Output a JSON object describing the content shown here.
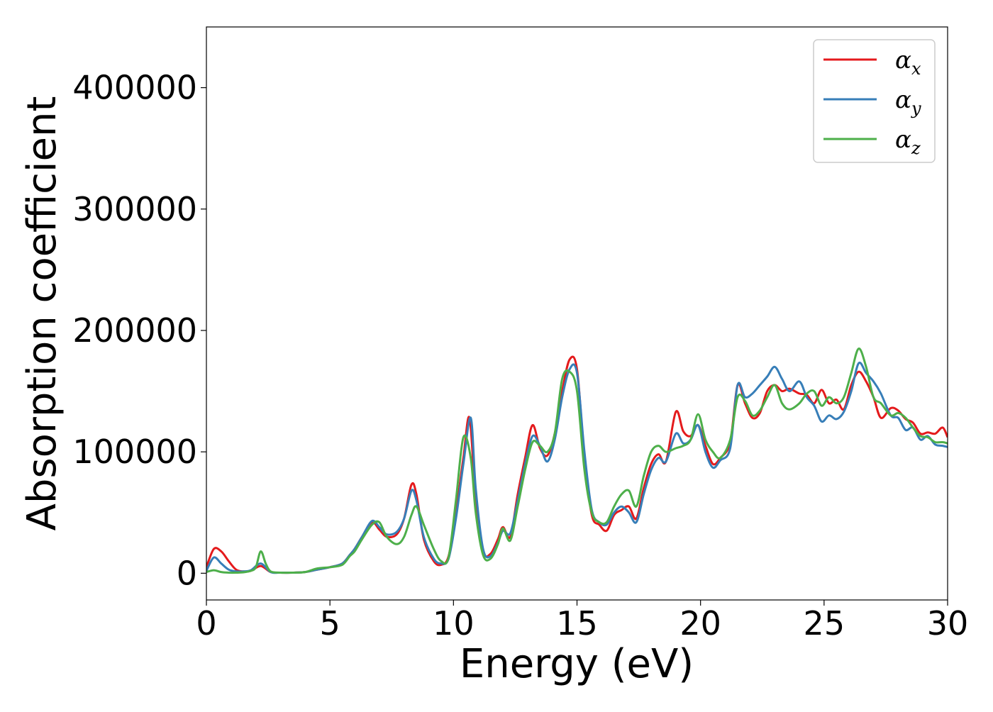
{
  "chart_data": {
    "type": "line",
    "title": "",
    "xlabel": "Energy (eV)",
    "ylabel": "Absorption coefficient",
    "xlim": [
      0,
      30
    ],
    "ylim": [
      -22000,
      450000
    ],
    "xticks": [
      0,
      5,
      10,
      15,
      20,
      25,
      30
    ],
    "xtick_labels": [
      "0",
      "5",
      "10",
      "15",
      "20",
      "25",
      "30"
    ],
    "yticks": [
      0,
      100000,
      200000,
      300000,
      400000
    ],
    "ytick_labels": [
      "0",
      "100000",
      "200000",
      "300000",
      "400000"
    ],
    "grid": false,
    "legend": {
      "position": "top-right"
    },
    "series": [
      {
        "name": "α",
        "subscript": "x",
        "color": "#e41a1c",
        "x": [
          0,
          0.3,
          0.6,
          0.9,
          1.2,
          1.5,
          1.8,
          2.2,
          2.6,
          3.0,
          3.5,
          4.0,
          4.5,
          5.0,
          5.5,
          5.8,
          6.0,
          6.3,
          6.7,
          7.0,
          7.3,
          7.7,
          8.0,
          8.3,
          8.5,
          8.8,
          9.2,
          9.5,
          9.8,
          10.1,
          10.4,
          10.65,
          10.9,
          11.2,
          11.5,
          11.8,
          12.0,
          12.3,
          12.6,
          12.9,
          13.2,
          13.5,
          13.8,
          14.1,
          14.4,
          14.7,
          15.0,
          15.3,
          15.6,
          15.9,
          16.2,
          16.5,
          16.8,
          17.1,
          17.4,
          17.7,
          18.0,
          18.3,
          18.6,
          19.0,
          19.3,
          19.6,
          19.9,
          20.2,
          20.5,
          20.8,
          21.2,
          21.5,
          21.8,
          22.1,
          22.4,
          22.7,
          23.0,
          23.3,
          23.6,
          24.0,
          24.3,
          24.6,
          24.9,
          25.2,
          25.5,
          25.8,
          26.1,
          26.4,
          26.7,
          27.0,
          27.3,
          27.7,
          28.0,
          28.3,
          28.6,
          28.9,
          29.2,
          29.5,
          29.8,
          30.0
        ],
        "y": [
          5000,
          20000,
          18000,
          10000,
          3000,
          1500,
          2000,
          6000,
          1000,
          500,
          500,
          1000,
          3000,
          5000,
          8000,
          15000,
          20000,
          30000,
          42000,
          36000,
          30000,
          32000,
          45000,
          73000,
          65000,
          28000,
          10000,
          7000,
          14000,
          50000,
          95000,
          128000,
          60000,
          18000,
          16000,
          28000,
          38000,
          30000,
          65000,
          95000,
          122000,
          103000,
          97000,
          115000,
          150000,
          176000,
          168000,
          95000,
          48000,
          40000,
          35000,
          48000,
          52000,
          55000,
          45000,
          70000,
          90000,
          98000,
          92000,
          133000,
          117000,
          113000,
          122000,
          105000,
          90000,
          95000,
          108000,
          155000,
          140000,
          128000,
          132000,
          150000,
          155000,
          150000,
          152000,
          148000,
          147000,
          140000,
          151000,
          140000,
          143000,
          135000,
          155000,
          166000,
          158000,
          145000,
          128000,
          136000,
          134000,
          127000,
          124000,
          115000,
          116000,
          115000,
          120000,
          112000
        ]
      },
      {
        "name": "α",
        "subscript": "y",
        "color": "#377eb8",
        "x": [
          0,
          0.3,
          0.6,
          0.9,
          1.2,
          1.5,
          1.8,
          2.2,
          2.6,
          3.0,
          3.5,
          4.0,
          4.5,
          5.0,
          5.5,
          5.8,
          6.0,
          6.3,
          6.7,
          7.0,
          7.3,
          7.7,
          8.0,
          8.3,
          8.5,
          8.8,
          9.2,
          9.5,
          9.8,
          10.1,
          10.4,
          10.7,
          10.9,
          11.2,
          11.5,
          11.8,
          12.0,
          12.3,
          12.6,
          12.9,
          13.2,
          13.5,
          13.8,
          14.1,
          14.4,
          14.7,
          15.0,
          15.3,
          15.6,
          15.9,
          16.2,
          16.5,
          16.8,
          17.1,
          17.4,
          17.7,
          18.0,
          18.3,
          18.6,
          19.0,
          19.3,
          19.6,
          19.9,
          20.2,
          20.5,
          20.8,
          21.2,
          21.5,
          21.8,
          22.1,
          22.4,
          22.7,
          23.0,
          23.3,
          23.6,
          24.0,
          24.3,
          24.6,
          24.9,
          25.2,
          25.5,
          25.8,
          26.1,
          26.4,
          26.7,
          27.0,
          27.3,
          27.7,
          28.0,
          28.3,
          28.6,
          28.9,
          29.2,
          29.5,
          29.8,
          30.0
        ],
        "y": [
          2000,
          13000,
          8000,
          3000,
          1500,
          1500,
          2500,
          8000,
          1000,
          500,
          500,
          1000,
          3000,
          5000,
          8000,
          15000,
          20000,
          30000,
          43000,
          38000,
          32000,
          34000,
          45000,
          68000,
          60000,
          30000,
          12000,
          8000,
          12000,
          45000,
          90000,
          128000,
          70000,
          20000,
          14000,
          25000,
          35000,
          33000,
          60000,
          90000,
          113000,
          105000,
          92000,
          110000,
          145000,
          168000,
          165000,
          100000,
          52000,
          42000,
          40000,
          50000,
          55000,
          50000,
          42000,
          65000,
          85000,
          95000,
          92000,
          115000,
          107000,
          110000,
          122000,
          100000,
          87000,
          93000,
          103000,
          155000,
          145000,
          148000,
          155000,
          162000,
          170000,
          160000,
          150000,
          158000,
          145000,
          138000,
          125000,
          130000,
          127000,
          133000,
          150000,
          173000,
          165000,
          158000,
          148000,
          130000,
          128000,
          118000,
          120000,
          110000,
          113000,
          106000,
          105000,
          104000
        ]
      },
      {
        "name": "α",
        "subscript": "z",
        "color": "#4daf4a",
        "x": [
          0,
          0.3,
          0.6,
          0.9,
          1.2,
          1.5,
          1.8,
          2.0,
          2.2,
          2.4,
          2.6,
          3.0,
          3.5,
          4.0,
          4.5,
          5.0,
          5.5,
          5.8,
          6.0,
          6.3,
          6.7,
          7.0,
          7.3,
          7.7,
          8.0,
          8.3,
          8.5,
          8.8,
          9.2,
          9.5,
          9.8,
          10.1,
          10.4,
          10.7,
          10.9,
          11.2,
          11.5,
          11.8,
          12.0,
          12.3,
          12.6,
          12.9,
          13.2,
          13.5,
          13.8,
          14.1,
          14.4,
          14.7,
          15.0,
          15.3,
          15.6,
          15.9,
          16.2,
          16.5,
          16.8,
          17.1,
          17.4,
          17.7,
          18.0,
          18.3,
          18.6,
          19.0,
          19.3,
          19.6,
          19.9,
          20.2,
          20.5,
          20.8,
          21.2,
          21.5,
          21.8,
          22.1,
          22.4,
          22.7,
          23.0,
          23.3,
          23.6,
          24.0,
          24.3,
          24.6,
          24.9,
          25.2,
          25.5,
          25.8,
          26.1,
          26.4,
          26.7,
          27.0,
          27.3,
          27.7,
          28.0,
          28.3,
          28.6,
          28.9,
          29.2,
          29.5,
          29.8,
          30.0
        ],
        "y": [
          1000,
          2500,
          1000,
          500,
          500,
          800,
          2000,
          5000,
          18000,
          8000,
          1500,
          500,
          500,
          1000,
          4000,
          5000,
          7000,
          14000,
          18000,
          28000,
          40000,
          42000,
          30000,
          24000,
          30000,
          48000,
          55000,
          40000,
          20000,
          10000,
          13000,
          60000,
          112000,
          95000,
          50000,
          15000,
          12000,
          24000,
          37000,
          27000,
          55000,
          85000,
          108000,
          105000,
          100000,
          115000,
          160000,
          166000,
          150000,
          85000,
          50000,
          42000,
          42000,
          55000,
          65000,
          68000,
          55000,
          80000,
          100000,
          105000,
          100000,
          103000,
          105000,
          110000,
          131000,
          110000,
          100000,
          95000,
          110000,
          145000,
          142000,
          130000,
          134000,
          145000,
          155000,
          140000,
          135000,
          140000,
          148000,
          150000,
          138000,
          145000,
          140000,
          145000,
          165000,
          185000,
          170000,
          145000,
          140000,
          130000,
          132000,
          128000,
          120000,
          113000,
          112000,
          108000,
          108000,
          107000
        ]
      }
    ]
  }
}
